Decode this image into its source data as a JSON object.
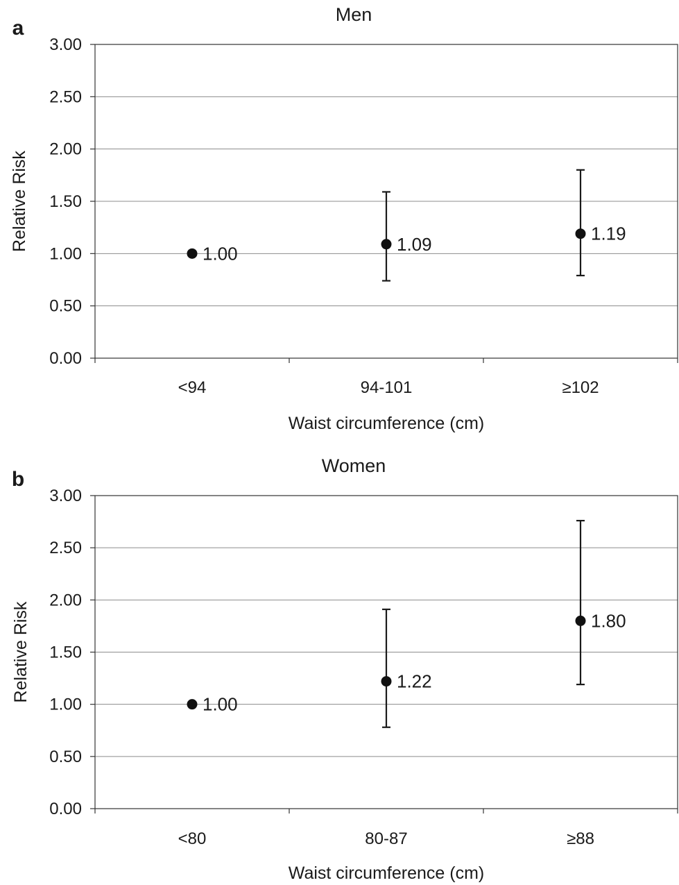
{
  "chart_data": [
    {
      "panel": "a",
      "type": "scatter",
      "title": "Men",
      "xlabel": "Waist circumference (cm)",
      "ylabel": "Relative Risk",
      "categories": [
        "<94",
        "94-101",
        "≥102"
      ],
      "values": [
        1.0,
        1.09,
        1.19
      ],
      "ci_lower": [
        null,
        0.74,
        0.79
      ],
      "ci_upper": [
        null,
        1.59,
        1.8
      ],
      "value_labels": [
        "1.00",
        "1.09",
        "1.19"
      ],
      "ylim": [
        0,
        3
      ],
      "yticks": [
        "0.00",
        "0.50",
        "1.00",
        "1.50",
        "2.00",
        "2.50",
        "3.00"
      ],
      "grid": true,
      "legend": "none"
    },
    {
      "panel": "b",
      "type": "scatter",
      "title": "Women",
      "xlabel": "Waist circumference (cm)",
      "ylabel": "Relative Risk",
      "categories": [
        "<80",
        "80-87",
        "≥88"
      ],
      "values": [
        1.0,
        1.22,
        1.8
      ],
      "ci_lower": [
        null,
        0.78,
        1.19
      ],
      "ci_upper": [
        null,
        1.91,
        2.76
      ],
      "value_labels": [
        "1.00",
        "1.22",
        "1.80"
      ],
      "ylim": [
        0,
        3
      ],
      "yticks": [
        "0.00",
        "0.50",
        "1.00",
        "1.50",
        "2.00",
        "2.50",
        "3.00"
      ],
      "grid": true,
      "legend": "none"
    }
  ]
}
